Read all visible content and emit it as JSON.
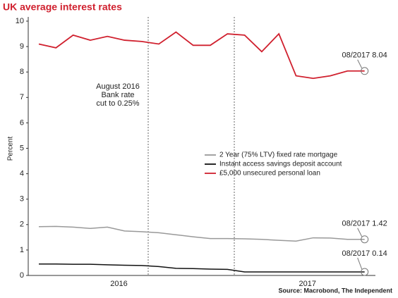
{
  "chart_data": {
    "type": "line",
    "title": "UK average interest rates",
    "y_label": "Percent",
    "source": "Source: Macrobond, The Independent",
    "categories": [
      null,
      null,
      null,
      null,
      null,
      "2016",
      null,
      null,
      null,
      null,
      null,
      null,
      null,
      null,
      null,
      null,
      "2017",
      null,
      null,
      null
    ],
    "series": [
      {
        "name": "2 Year (75% LTV) fixed rate mortgage",
        "color": "#999999",
        "values": [
          1.92,
          1.93,
          1.9,
          1.85,
          1.9,
          1.75,
          1.72,
          1.68,
          1.6,
          1.52,
          1.45,
          1.45,
          1.44,
          1.42,
          1.38,
          1.35,
          1.48,
          1.47,
          1.42,
          1.42
        ]
      },
      {
        "name": "Instant access savings deposit account",
        "color": "#111111",
        "values": [
          0.45,
          0.45,
          0.44,
          0.44,
          0.42,
          0.4,
          0.39,
          0.35,
          0.28,
          0.27,
          0.25,
          0.24,
          0.14,
          0.14,
          0.14,
          0.14,
          0.14,
          0.14,
          0.14,
          0.14
        ]
      },
      {
        "name": "£5,000 unsecured personal loan",
        "color": "#d0202e",
        "values": [
          9.1,
          8.95,
          9.45,
          9.25,
          9.4,
          9.25,
          9.2,
          9.1,
          9.57,
          9.05,
          9.05,
          9.5,
          9.45,
          8.8,
          9.5,
          7.85,
          7.75,
          7.85,
          8.04,
          8.04
        ]
      }
    ],
    "annotations": [
      "08/2017 8.04",
      "08/2017 1.42",
      "08/2017 0.14"
    ],
    "event_note": [
      "August 2016",
      "Bank rate",
      "cut to 0.25%"
    ],
    "ylim": [
      0,
      10
    ],
    "yticks": [
      0,
      1,
      2,
      3,
      4,
      5,
      6,
      7,
      8,
      9,
      10
    ],
    "grid": false
  }
}
